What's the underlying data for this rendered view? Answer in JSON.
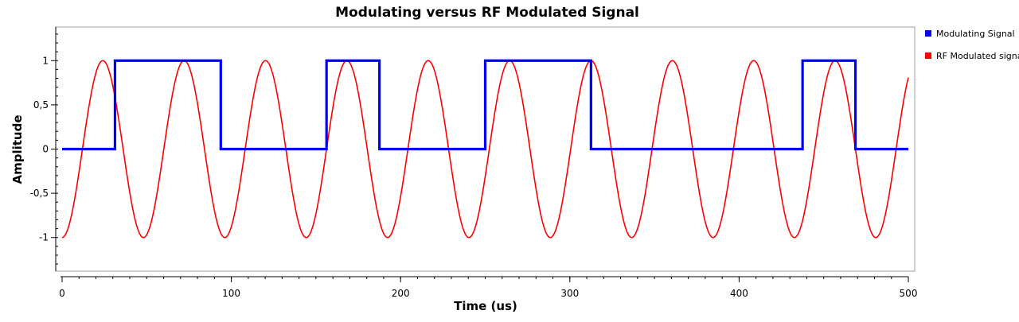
{
  "chart_data": {
    "type": "line",
    "title": "Modulating versus RF Modulated Signal",
    "xlabel": "Time (us)",
    "ylabel": "Amplitude",
    "xlim": [
      0,
      500
    ],
    "ylim": [
      -1.38,
      1.38
    ],
    "x_ticks": [
      0,
      100,
      200,
      300,
      400,
      500
    ],
    "x_tick_labels": [
      "0",
      "100",
      "200",
      "300",
      "400",
      "500"
    ],
    "y_ticks": [
      1,
      0.5,
      0,
      -0.5,
      -1
    ],
    "y_tick_labels": [
      "1",
      "0,5",
      "0",
      "-0,5",
      "-1"
    ],
    "grid": false,
    "legend_position": "top-right",
    "carrier_frequency_mhz": 0.0208,
    "series": [
      {
        "name": "Modulating Signal",
        "color": "#0000ff",
        "points": [
          [
            0,
            0
          ],
          [
            31.25,
            0
          ],
          [
            31.25,
            1
          ],
          [
            93.75,
            1
          ],
          [
            93.75,
            0
          ],
          [
            156.25,
            0
          ],
          [
            156.25,
            1
          ],
          [
            187.5,
            1
          ],
          [
            187.5,
            0
          ],
          [
            250,
            0
          ],
          [
            250,
            1
          ],
          [
            312.5,
            1
          ],
          [
            312.5,
            0
          ],
          [
            437.5,
            0
          ],
          [
            437.5,
            1
          ],
          [
            468.75,
            1
          ],
          [
            468.75,
            0
          ],
          [
            500,
            0
          ]
        ]
      },
      {
        "name": "RF Modulated signal",
        "color": "#ff0000",
        "phase_shift_points": [
          31.25,
          93.75,
          156.25,
          187.5,
          250,
          312.5,
          437.5,
          468.75
        ]
      }
    ]
  }
}
